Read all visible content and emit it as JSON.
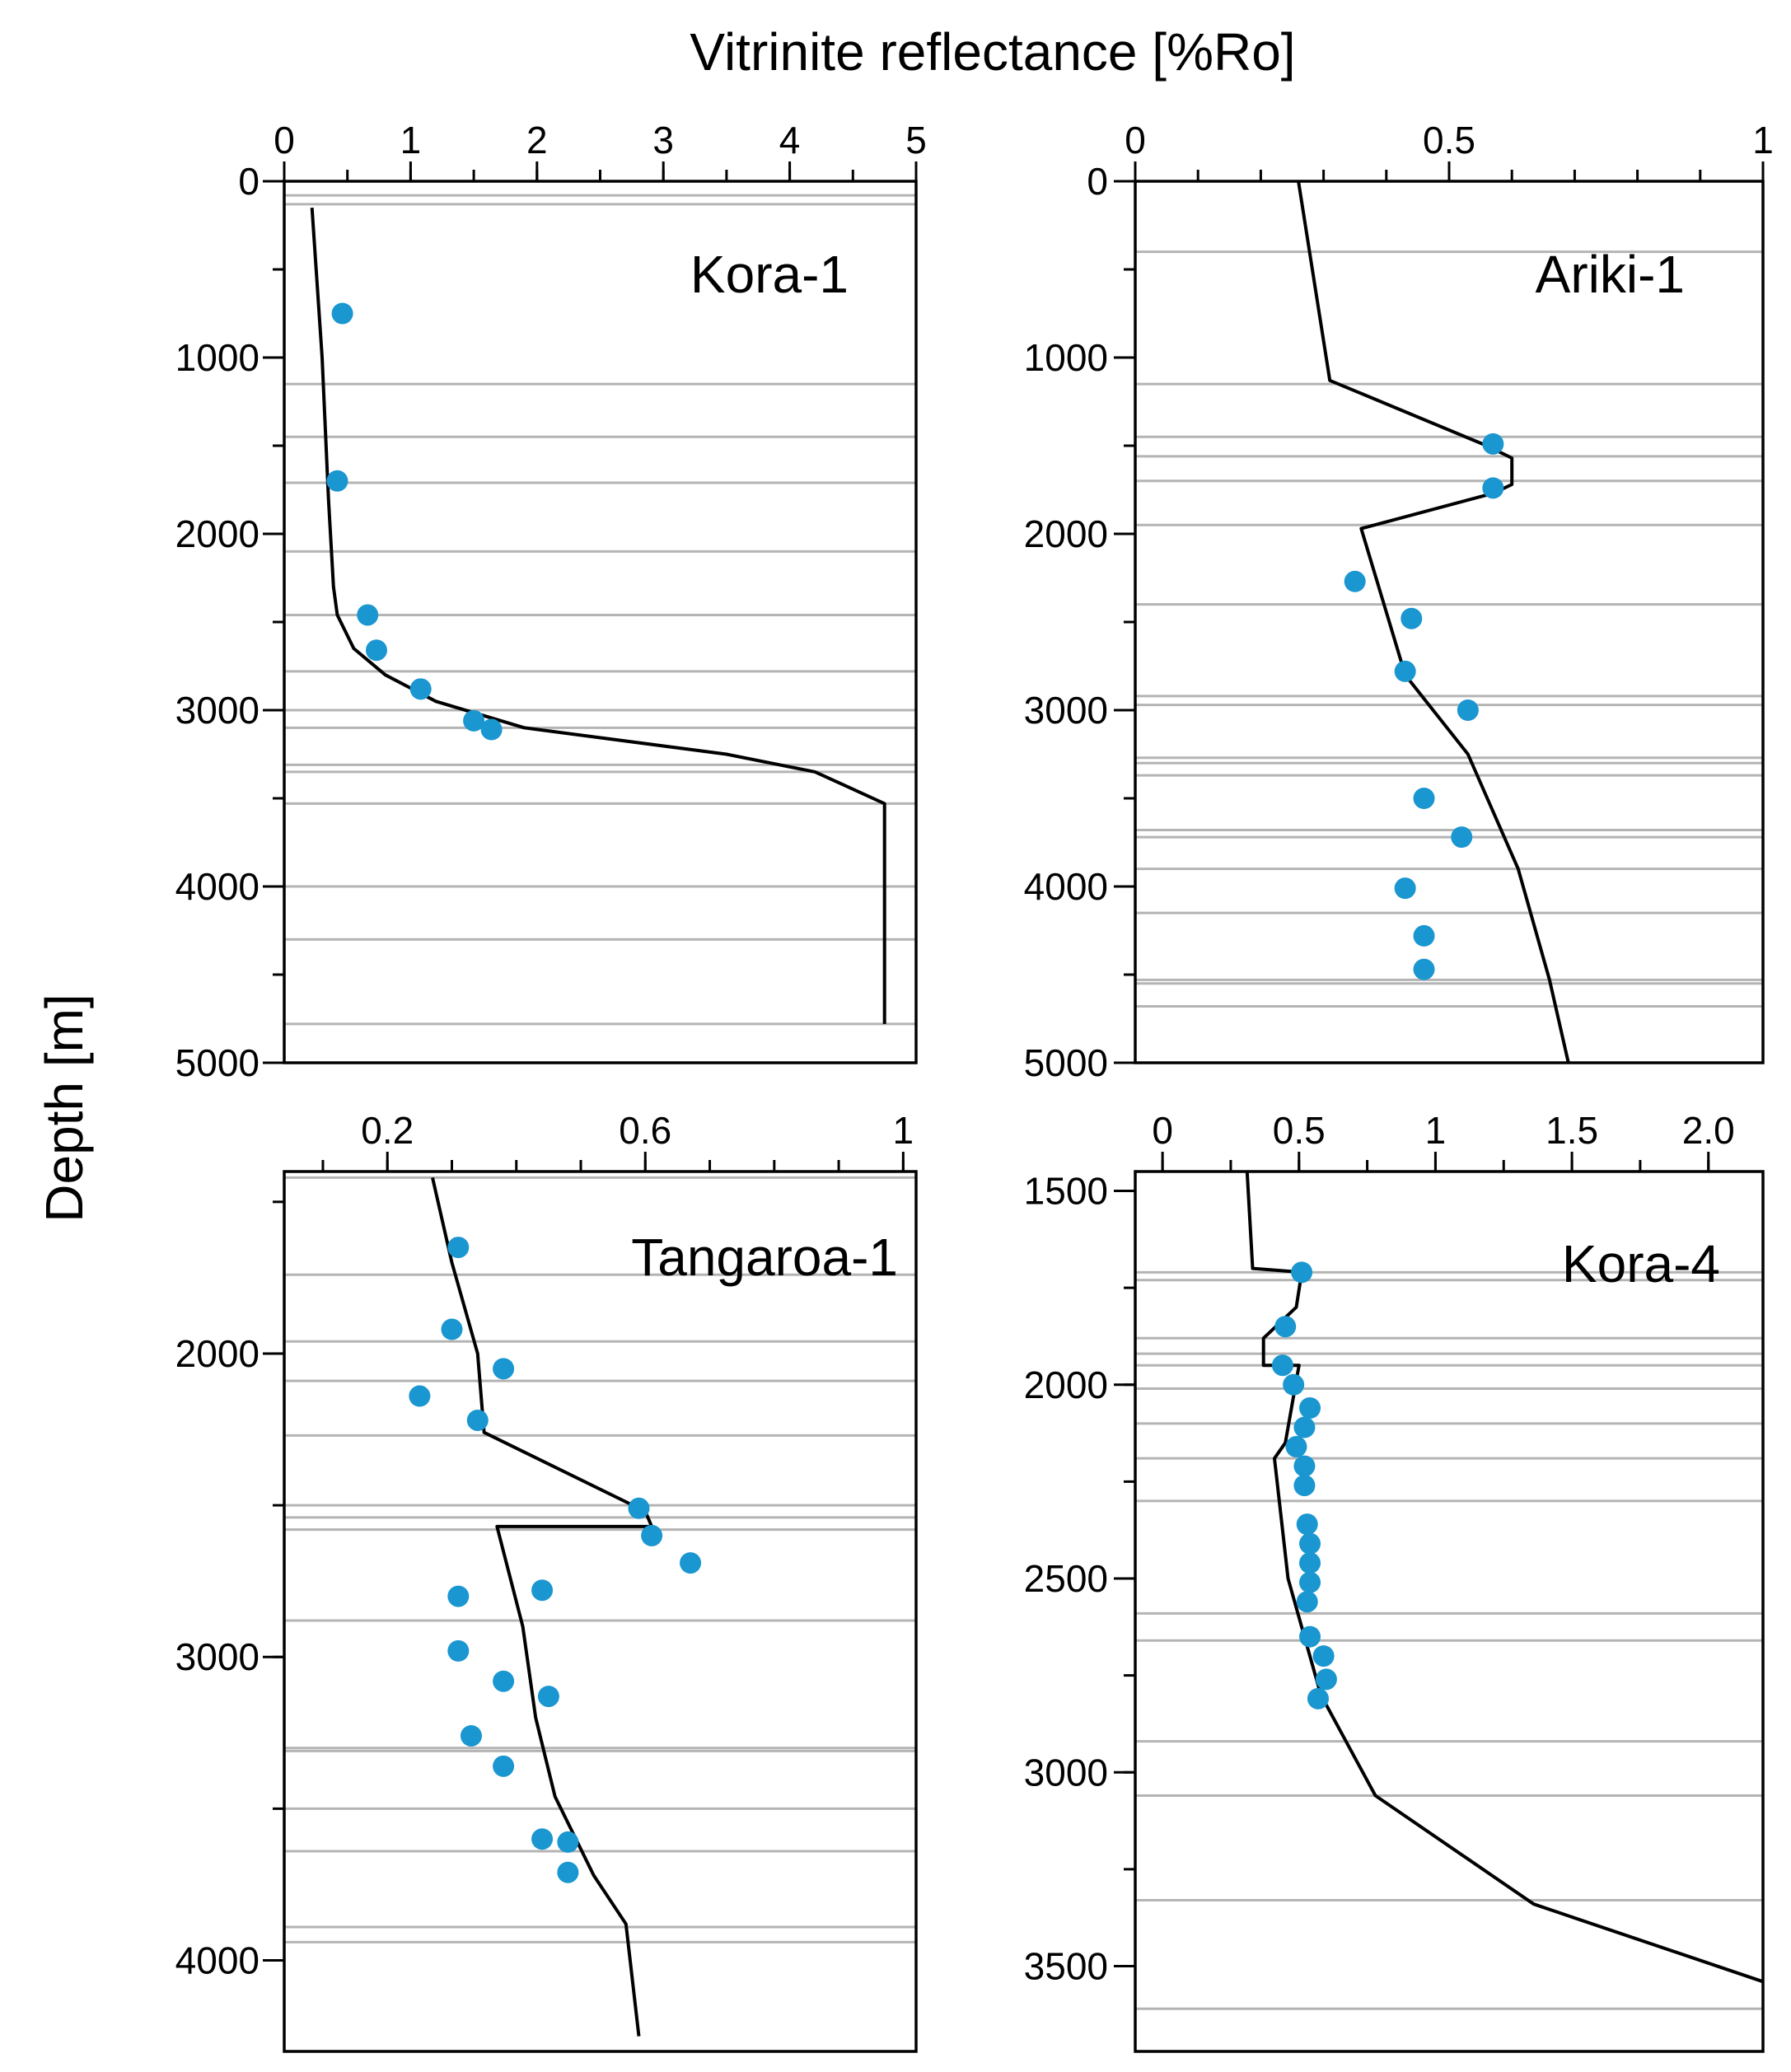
{
  "figure": {
    "xlabel": "Vitrinite reflectance [%Ro]",
    "ylabel": "Depth [m]"
  },
  "colors": {
    "point": "#1a96d0",
    "curve": "#000000",
    "gridline": "#b4b4b4",
    "axis": "#000000"
  },
  "chart_data": [
    {
      "title": "Kora-1",
      "type": "scatter",
      "xlim": [
        0,
        5
      ],
      "ylim": [
        0,
        5000
      ],
      "x_ticks": [
        0,
        1,
        2,
        3,
        4,
        5
      ],
      "x_tick_labels": [
        "0",
        "1",
        "2",
        "3",
        "4",
        "5"
      ],
      "x_minor_step": 0.5,
      "y_ticks": [
        0,
        1000,
        2000,
        3000,
        4000,
        5000
      ],
      "y_tick_labels": [
        "0",
        "1000",
        "2000",
        "3000",
        "4000",
        "5000"
      ],
      "y_minor_step": 500,
      "formation_tops": [
        80,
        130,
        1150,
        1450,
        1710,
        2100,
        2460,
        2780,
        3000,
        3100,
        3310,
        3350,
        3530,
        4000,
        4300,
        4780
      ],
      "model_curve": {
        "x": [
          0.22,
          0.3,
          0.35,
          0.39,
          0.42,
          0.55,
          0.8,
          1.2,
          1.9,
          3.5,
          4.2,
          4.75,
          4.75
        ],
        "y": [
          150,
          1000,
          1800,
          2300,
          2460,
          2650,
          2800,
          2950,
          3100,
          3250,
          3350,
          3530,
          4780
        ]
      },
      "measured": {
        "x": [
          0.46,
          0.42,
          0.66,
          0.73,
          1.08,
          1.5,
          1.64
        ],
        "y": [
          750,
          1700,
          2460,
          2660,
          2880,
          3060,
          3110
        ]
      }
    },
    {
      "title": "Ariki-1",
      "type": "scatter",
      "xlim": [
        0,
        1
      ],
      "ylim": [
        0,
        5000
      ],
      "x_ticks": [
        0,
        0.5,
        1
      ],
      "x_tick_labels": [
        "0",
        "0.5",
        "1"
      ],
      "x_minor_step": 0.1,
      "y_ticks": [
        0,
        1000,
        2000,
        3000,
        4000,
        5000
      ],
      "y_tick_labels": [
        "0",
        "1000",
        "2000",
        "3000",
        "4000",
        "5000"
      ],
      "y_minor_step": 500,
      "formation_tops": [
        400,
        1150,
        1450,
        1560,
        1700,
        1950,
        2400,
        2920,
        2970,
        3270,
        3300,
        3370,
        3680,
        3720,
        3900,
        4150,
        4530,
        4550,
        4680
      ],
      "model_curve": {
        "x": [
          0.26,
          0.31,
          0.56,
          0.6,
          0.6,
          0.57,
          0.36,
          0.43,
          0.53,
          0.61,
          0.66,
          0.69
        ],
        "y": [
          0,
          1130,
          1500,
          1570,
          1720,
          1770,
          1970,
          2800,
          3250,
          3900,
          4530,
          5000
        ]
      },
      "measured": {
        "x": [
          0.57,
          0.57,
          0.35,
          0.44,
          0.43,
          0.53,
          0.46,
          0.52,
          0.43,
          0.46,
          0.46
        ],
        "y": [
          1490,
          1740,
          2270,
          2480,
          2780,
          3000,
          3500,
          3720,
          4010,
          4280,
          4470
        ]
      }
    },
    {
      "title": "Tangaroa-1",
      "type": "scatter",
      "xlim": [
        0.04,
        1.02
      ],
      "ylim": [
        1400,
        4300
      ],
      "x_ticks": [
        0.2,
        0.6,
        1
      ],
      "x_tick_labels": [
        "0.2",
        "0.6",
        "1"
      ],
      "x_minor_step": 0.1,
      "y_ticks": [
        2000,
        3000,
        4000
      ],
      "y_tick_labels": [
        "2000",
        "3000",
        "4000"
      ],
      "y_minor_step": 500,
      "formation_tops": [
        1420,
        1740,
        1960,
        2090,
        2270,
        2500,
        2540,
        2580,
        2880,
        3300,
        3310,
        3500,
        3640,
        3890,
        3940
      ],
      "model_curve": {
        "x": [
          0.27,
          0.3,
          0.34,
          0.35,
          0.6,
          0.61,
          0.37,
          0.41,
          0.43,
          0.46,
          0.52,
          0.57,
          0.59
        ],
        "y": [
          1420,
          1700,
          2000,
          2260,
          2520,
          2570,
          2570,
          2900,
          3200,
          3460,
          3720,
          3880,
          4250
        ]
      },
      "measured": {
        "x": [
          0.31,
          0.3,
          0.38,
          0.25,
          0.34,
          0.59,
          0.61,
          0.67,
          0.31,
          0.44,
          0.31,
          0.38,
          0.45,
          0.33,
          0.38,
          0.44,
          0.48,
          0.48
        ],
        "y": [
          1650,
          1920,
          2050,
          2140,
          2220,
          2510,
          2600,
          2690,
          2800,
          2780,
          2980,
          3080,
          3130,
          3260,
          3360,
          3600,
          3610,
          3710
        ]
      }
    },
    {
      "title": "Kora-4",
      "type": "scatter",
      "xlim": [
        -0.1,
        2.2
      ],
      "ylim": [
        1450,
        3720
      ],
      "x_ticks": [
        0,
        0.5,
        1,
        1.5,
        2.0
      ],
      "x_tick_labels": [
        "0",
        "0.5",
        "1",
        "1.5",
        "2.0"
      ],
      "x_minor_step": 0.25,
      "y_ticks": [
        1500,
        2000,
        2500,
        3000,
        3500
      ],
      "y_tick_labels": [
        "1500",
        "2000",
        "2500",
        "3000",
        "3500"
      ],
      "y_minor_step": 250,
      "formation_tops": [
        1710,
        1730,
        1880,
        1920,
        1950,
        2010,
        2100,
        2190,
        2300,
        2590,
        2660,
        2920,
        3060,
        3330,
        3610
      ],
      "model_curve": {
        "x": [
          0.31,
          0.33,
          0.51,
          0.49,
          0.37,
          0.37,
          0.5,
          0.45,
          0.41,
          0.46,
          0.58,
          0.78,
          1.36,
          2.2
        ],
        "y": [
          1450,
          1700,
          1710,
          1800,
          1880,
          1950,
          1950,
          2150,
          2190,
          2500,
          2800,
          3060,
          3340,
          3540
        ]
      },
      "measured": {
        "x": [
          0.51,
          0.45,
          0.44,
          0.48,
          0.54,
          0.52,
          0.49,
          0.52,
          0.52,
          0.53,
          0.54,
          0.54,
          0.54,
          0.53,
          0.54,
          0.59,
          0.6,
          0.57
        ],
        "y": [
          1710,
          1850,
          1950,
          2000,
          2060,
          2110,
          2160,
          2210,
          2260,
          2360,
          2410,
          2460,
          2510,
          2560,
          2650,
          2700,
          2760,
          2810
        ]
      }
    }
  ]
}
